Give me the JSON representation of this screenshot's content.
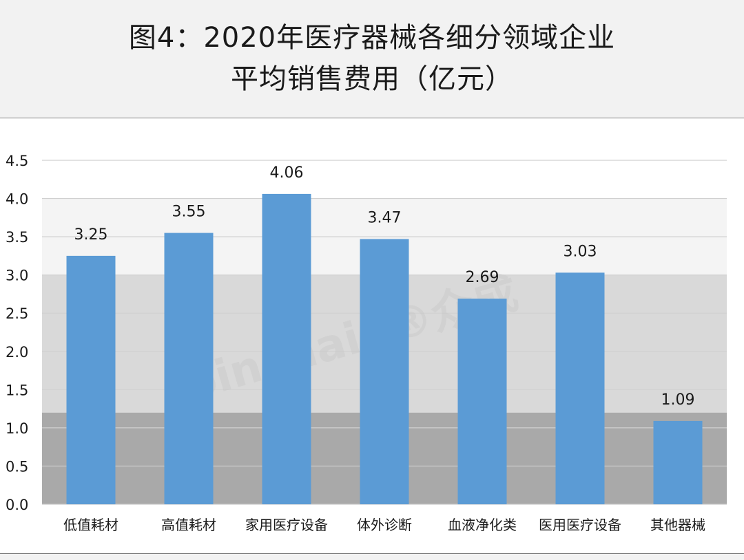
{
  "title": {
    "line1": "图4：2020年医疗器械各细分领域企业",
    "line2": "平均销售费用（亿元）"
  },
  "watermark": "Joinchain®众成",
  "colors": {
    "bar": "#5b9bd5",
    "band_light": "#f4f4f4",
    "band_mid": "#d9d9d9",
    "band_dark": "#a9a9a9",
    "gridline": "#d0d0d0",
    "text": "#1a1a1a"
  },
  "chart_data": {
    "type": "bar",
    "categories": [
      "低值耗材",
      "高值耗材",
      "家用医疗设备",
      "体外诊断",
      "血液净化类",
      "医用医疗设备",
      "其他器械"
    ],
    "values": [
      3.25,
      3.55,
      4.06,
      3.47,
      2.69,
      3.03,
      1.09
    ],
    "data_labels": [
      "3.25",
      "3.55",
      "4.06",
      "3.47",
      "2.69",
      "3.03",
      "1.09"
    ],
    "yticks": [
      "0.0",
      "0.5",
      "1.0",
      "1.5",
      "2.0",
      "2.5",
      "3.0",
      "3.5",
      "4.0",
      "4.5"
    ],
    "ylim": [
      0,
      4.5
    ],
    "ytick_step": 0.5,
    "background_bands": [
      {
        "from": 0,
        "to": 1.2,
        "color": "#a9a9a9"
      },
      {
        "from": 1.2,
        "to": 3.0,
        "color": "#d9d9d9"
      },
      {
        "from": 3.0,
        "to": 4.0,
        "color": "#f4f4f4"
      }
    ],
    "grid": true,
    "legend": "none",
    "xlabel": "",
    "ylabel": ""
  }
}
